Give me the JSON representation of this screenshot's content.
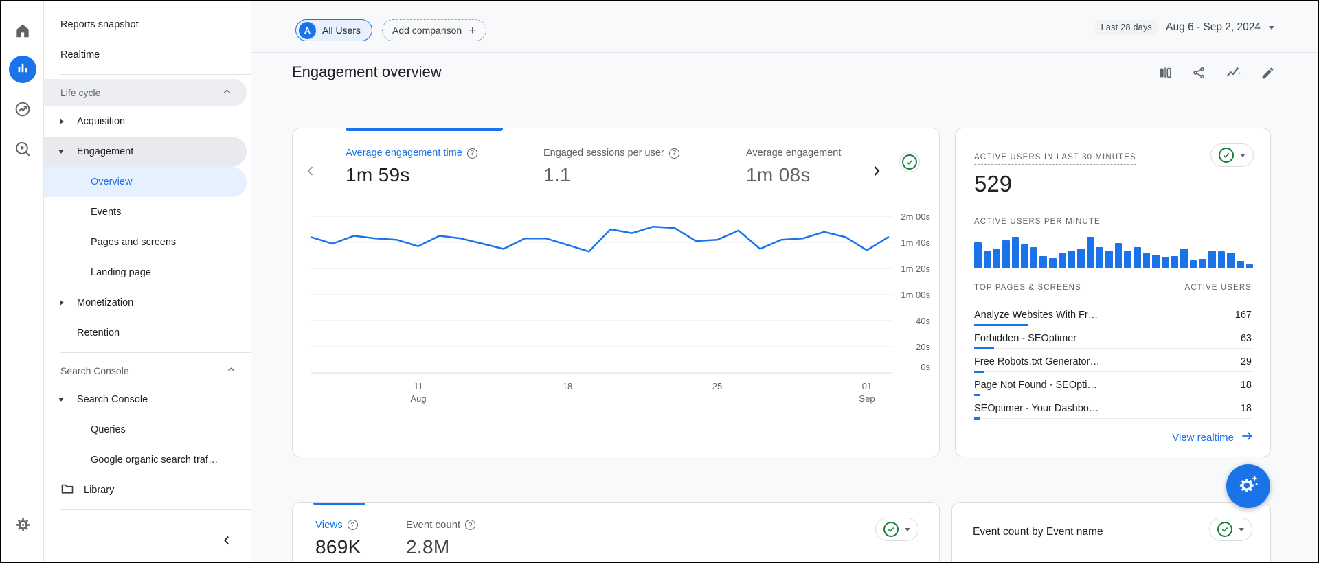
{
  "help_glyph": "?",
  "colors": {
    "accent": "#1a73e8",
    "ok_green": "#188038",
    "text": "#202124",
    "muted": "#5f6368"
  },
  "nav_rail": {
    "items": [
      "home",
      "reports",
      "advertising",
      "explore"
    ],
    "settings": "settings",
    "active_item": "reports"
  },
  "sidebar": {
    "reports_snapshot": "Reports snapshot",
    "realtime": "Realtime",
    "life_cycle": "Life cycle",
    "acquisition": "Acquisition",
    "engagement": "Engagement",
    "overview": "Overview",
    "events": "Events",
    "pages_and_screens": "Pages and screens",
    "landing_page": "Landing page",
    "monetization": "Monetization",
    "retention": "Retention",
    "search_console_section": "Search Console",
    "search_console": "Search Console",
    "queries": "Queries",
    "google_organic": "Google organic search traf…",
    "library": "Library"
  },
  "header": {
    "avatar": "A",
    "all_users": "All Users",
    "add_comparison": "Add comparison",
    "plus": "+",
    "date_range_label": "Last 28 days",
    "date_range": "Aug 6 - Sep 2, 2024"
  },
  "page": {
    "title": "Engagement overview"
  },
  "metrics_card": {
    "tabs": [
      {
        "label": "Average engagement time",
        "value": "1m 59s",
        "selected": true
      },
      {
        "label": "Engaged sessions per user",
        "value": "1.1",
        "selected": false
      },
      {
        "label": "Average engagement",
        "value": "1m 08s",
        "selected": false
      }
    ],
    "chart_data": {
      "type": "line",
      "title": "Average engagement time",
      "x_start": "Aug 6, 2024",
      "x_end": "Sep 2, 2024",
      "unit": "seconds",
      "values_seconds": [
        104,
        99,
        105,
        103,
        102,
        97,
        105,
        103,
        99,
        95,
        103,
        103,
        98,
        93,
        110,
        107,
        112,
        111,
        101,
        102,
        109,
        95,
        102,
        103,
        108,
        104,
        94,
        104
      ],
      "ylim_seconds": [
        0,
        120
      ],
      "yticks": [
        "2m 00s",
        "1m 40s",
        "1m 20s",
        "1m 00s",
        "40s",
        "20s",
        "0s"
      ],
      "xticks": [
        {
          "label": "11",
          "sublabel": "Aug",
          "day_index": 5
        },
        {
          "label": "18",
          "sublabel": "",
          "day_index": 12
        },
        {
          "label": "25",
          "sublabel": "",
          "day_index": 19
        },
        {
          "label": "01",
          "sublabel": "Sep",
          "day_index": 26
        }
      ],
      "grid": true,
      "line_color": "#1a73e8"
    }
  },
  "realtime_card": {
    "title": "ACTIVE USERS IN LAST 30 MINUTES",
    "active_users": "529",
    "per_minute_title": "ACTIVE USERS PER MINUTE",
    "bars_chart_data": {
      "type": "bar",
      "ylabel": "active users per minute",
      "values": [
        25,
        17,
        19,
        27,
        30,
        23,
        20,
        12,
        10,
        15,
        17,
        19,
        30,
        20,
        17,
        24,
        16,
        20,
        15,
        13,
        11,
        12,
        19,
        8,
        9,
        17,
        16,
        15,
        7,
        4
      ],
      "bar_color": "#1a73e8"
    },
    "table": {
      "col_pages": "TOP PAGES & SCREENS",
      "col_users": "ACTIVE USERS",
      "rows": [
        {
          "name": "Analyze Websites With Fr…",
          "users": 167
        },
        {
          "name": "Forbidden - SEOptimer",
          "users": 63
        },
        {
          "name": "Free Robots.txt Generator…",
          "users": 29
        },
        {
          "name": "Page Not Found - SEOpti…",
          "users": 18
        },
        {
          "name": "SEOptimer - Your Dashbo…",
          "users": 18
        }
      ]
    },
    "link": "View realtime"
  },
  "views_card": {
    "tabs": [
      {
        "label": "Views",
        "value": "869K",
        "selected": true
      },
      {
        "label": "Event count",
        "value": "2.8M",
        "selected": false
      }
    ]
  },
  "event_card": {
    "title_metric": "Event count",
    "title_join": " by ",
    "title_dim": "Event name"
  }
}
